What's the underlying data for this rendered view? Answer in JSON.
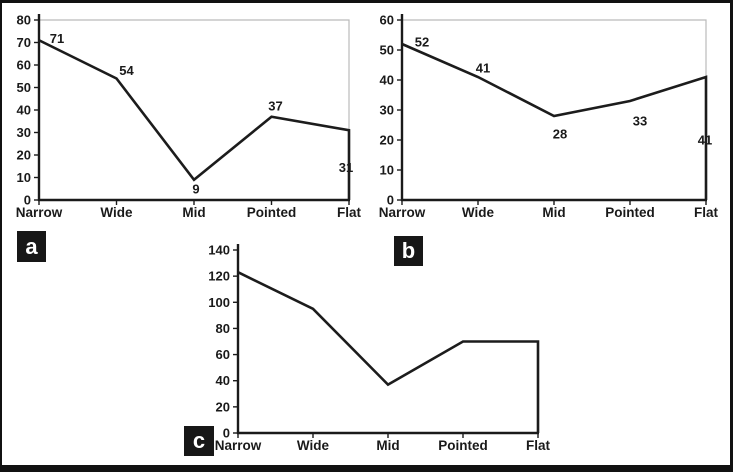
{
  "figure": {
    "description": "Three-panel line chart figure",
    "panels": [
      {
        "label": "a"
      },
      {
        "label": "b"
      },
      {
        "label": "c"
      }
    ]
  },
  "chart_data": [
    {
      "type": "line",
      "panel": "a",
      "categories": [
        "Narrow",
        "Wide",
        "Mid",
        "Pointed",
        "Flat"
      ],
      "values": [
        71,
        54,
        9,
        37,
        31
      ],
      "data_labels": [
        "71",
        "54",
        "9",
        "37",
        "31"
      ],
      "show_data_labels": true,
      "title": "",
      "xlabel": "",
      "ylabel": "",
      "ylim": [
        0,
        80
      ],
      "ytick_step": 10,
      "grid": "top-right-light",
      "legend": "none",
      "line_drops_to_zero_at_right": true
    },
    {
      "type": "line",
      "panel": "b",
      "categories": [
        "Narrow",
        "Wide",
        "Mid",
        "Pointed",
        "Flat"
      ],
      "values": [
        52,
        41,
        28,
        33,
        41
      ],
      "data_labels": [
        "52",
        "41",
        "28",
        "33",
        "41"
      ],
      "show_data_labels": true,
      "title": "",
      "xlabel": "",
      "ylabel": "",
      "ylim": [
        0,
        60
      ],
      "ytick_step": 10,
      "grid": "top-right-light",
      "legend": "none",
      "line_drops_to_zero_at_right": true
    },
    {
      "type": "line",
      "panel": "c",
      "categories": [
        "Narrow",
        "Wide",
        "Mid",
        "Pointed",
        "Flat"
      ],
      "values": [
        123,
        95,
        37,
        70,
        70
      ],
      "data_labels": [],
      "show_data_labels": false,
      "title": "",
      "xlabel": "",
      "ylabel": "",
      "ylim": [
        0,
        140
      ],
      "ytick_step": 20,
      "grid": "none",
      "legend": "none",
      "line_drops_to_zero_at_right": true
    }
  ],
  "colors": {
    "line": "#1c1c1c",
    "axis": "#1a1a1a",
    "grid": "#bababa",
    "text": "#1a1a1a",
    "frame": "#111111",
    "panel_tag_bg": "#171717",
    "panel_tag_text": "#ffffff",
    "background": "#ffffff"
  }
}
